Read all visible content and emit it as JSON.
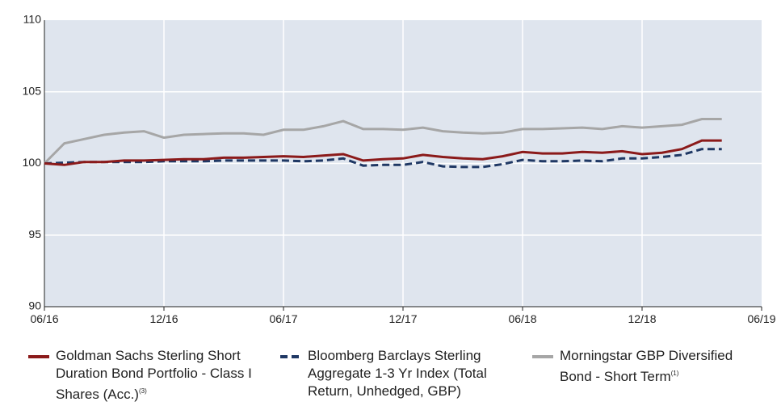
{
  "chart_data": {
    "type": "line",
    "x": [
      "06/16",
      "07/16",
      "08/16",
      "09/16",
      "10/16",
      "11/16",
      "12/16",
      "01/17",
      "02/17",
      "03/17",
      "04/17",
      "05/17",
      "06/17",
      "07/17",
      "08/17",
      "09/17",
      "10/17",
      "11/17",
      "12/17",
      "01/18",
      "02/18",
      "03/18",
      "04/18",
      "05/18",
      "06/18",
      "07/18",
      "08/18",
      "09/18",
      "10/18",
      "11/18",
      "12/18",
      "01/19",
      "02/19",
      "03/19",
      "04/19"
    ],
    "series": [
      {
        "name": "Goldman Sachs Sterling Short Duration Bond Portfolio - Class I Shares (Acc.)",
        "name_note": "(3)",
        "color": "#8b1a1a",
        "dash": false,
        "values": [
          100.0,
          99.9,
          100.1,
          100.1,
          100.2,
          100.2,
          100.25,
          100.3,
          100.3,
          100.4,
          100.4,
          100.45,
          100.5,
          100.45,
          100.55,
          100.65,
          100.2,
          100.3,
          100.35,
          100.6,
          100.45,
          100.35,
          100.3,
          100.5,
          100.8,
          100.7,
          100.7,
          100.8,
          100.75,
          100.85,
          100.65,
          100.75,
          101.0,
          101.6,
          101.6
        ]
      },
      {
        "name": "Bloomberg Barclays Sterling Aggregate 1-3 Yr Index (Total Return, Unhedged, GBP)",
        "color": "#1f3864",
        "dash": true,
        "values": [
          100.0,
          100.05,
          100.1,
          100.1,
          100.1,
          100.1,
          100.15,
          100.15,
          100.15,
          100.2,
          100.2,
          100.2,
          100.2,
          100.15,
          100.2,
          100.35,
          99.85,
          99.9,
          99.9,
          100.1,
          99.8,
          99.75,
          99.75,
          99.95,
          100.25,
          100.15,
          100.15,
          100.2,
          100.15,
          100.35,
          100.35,
          100.45,
          100.6,
          101.0,
          101.0
        ]
      },
      {
        "name": "Morningstar GBP Diversified Bond - Short Term",
        "name_note": "(1)",
        "color": "#a6a6a6",
        "dash": false,
        "values": [
          100.0,
          101.4,
          101.7,
          102.0,
          102.15,
          102.25,
          101.8,
          102.0,
          102.05,
          102.1,
          102.1,
          102.0,
          102.35,
          102.35,
          102.6,
          102.95,
          102.4,
          102.4,
          102.35,
          102.5,
          102.25,
          102.15,
          102.1,
          102.15,
          102.4,
          102.4,
          102.45,
          102.5,
          102.4,
          102.6,
          102.5,
          102.6,
          102.7,
          103.1,
          103.1
        ]
      }
    ],
    "xlim": [
      "06/16",
      "06/19"
    ],
    "xticks": [
      "06/16",
      "12/16",
      "06/17",
      "12/17",
      "06/18",
      "12/18",
      "06/19"
    ],
    "ylim": [
      90,
      110
    ],
    "yticks": [
      90,
      95,
      100,
      105,
      110
    ],
    "grid": true,
    "background": "#dfe5ee"
  }
}
